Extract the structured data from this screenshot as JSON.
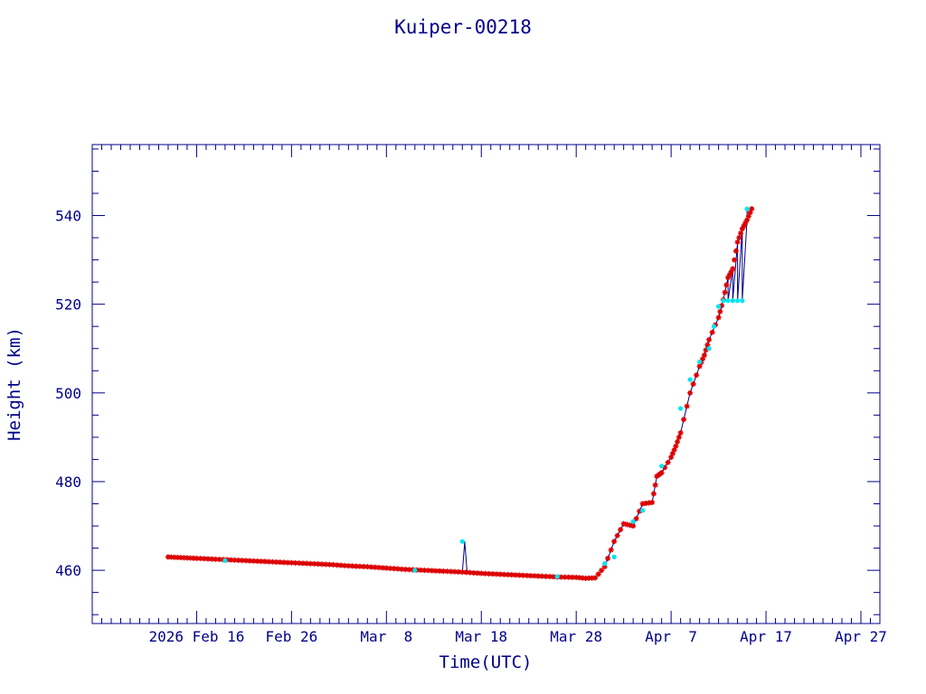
{
  "chart_data": {
    "type": "scatter",
    "title": "Kuiper-00218",
    "xlabel": "Time(UTC)",
    "ylabel": "Height (km)",
    "xlim": [
      "2026-02-05",
      "2026-04-29"
    ],
    "ylim": [
      448,
      556
    ],
    "x_ticks": [
      {
        "label": "2026 Feb 16",
        "date": "2026-02-16"
      },
      {
        "label": "Feb 26",
        "date": "2026-02-26"
      },
      {
        "label": "Mar  8",
        "date": "2026-03-08"
      },
      {
        "label": "Mar 18",
        "date": "2026-03-18"
      },
      {
        "label": "Mar 28",
        "date": "2026-03-28"
      },
      {
        "label": "Apr  7",
        "date": "2026-04-07"
      },
      {
        "label": "Apr 17",
        "date": "2026-04-17"
      },
      {
        "label": "Apr 27",
        "date": "2026-04-27"
      }
    ],
    "y_ticks": [
      460,
      480,
      500,
      520,
      540
    ],
    "colors": {
      "axis": "#00008b",
      "line": "#00008b",
      "primary": "#dd0000",
      "secondary": "#00e5ee"
    },
    "series": [
      {
        "marker": "star",
        "color": "#dd0000",
        "points": [
          [
            "2026-02-13",
            463.0
          ],
          [
            "2026-02-14",
            462.9
          ],
          [
            "2026-02-15",
            462.8
          ],
          [
            "2026-02-16",
            462.7
          ],
          [
            "2026-02-18",
            462.5
          ],
          [
            "2026-02-20",
            462.3
          ],
          [
            "2026-02-22",
            462.1
          ],
          [
            "2026-02-24",
            461.9
          ],
          [
            "2026-02-26",
            461.7
          ],
          [
            "2026-02-28",
            461.5
          ],
          [
            "2026-03-02",
            461.3
          ],
          [
            "2026-03-04",
            461.0
          ],
          [
            "2026-03-06",
            460.8
          ],
          [
            "2026-03-08",
            460.5
          ],
          [
            "2026-03-10",
            460.2
          ],
          [
            "2026-03-12",
            460.0
          ],
          [
            "2026-03-14",
            459.8
          ],
          [
            "2026-03-16",
            459.6
          ],
          [
            "2026-03-18",
            459.3
          ],
          [
            "2026-03-20",
            459.1
          ],
          [
            "2026-03-22",
            458.9
          ],
          [
            "2026-03-24",
            458.7
          ],
          [
            "2026-03-26",
            458.5
          ],
          [
            "2026-03-28",
            458.4
          ],
          [
            "2026-03-29",
            458.2
          ],
          [
            "2026-03-30",
            458.3
          ],
          [
            "2026-03-31",
            460.8
          ],
          [
            "2026-04-01",
            466.5
          ],
          [
            "2026-04-02",
            470.5
          ],
          [
            "2026-04-03",
            470.0
          ],
          [
            "2026-04-04",
            475.0
          ],
          [
            "2026-04-05",
            475.3
          ],
          [
            "2026-04-05T12:00",
            481.2
          ],
          [
            "2026-04-06",
            482.0
          ],
          [
            "2026-04-07",
            485.5
          ],
          [
            "2026-04-07T12:00",
            488.0
          ],
          [
            "2026-04-08",
            491.0
          ],
          [
            "2026-04-09",
            500.0
          ],
          [
            "2026-04-10",
            506.0
          ],
          [
            "2026-04-10T12:00",
            508.5
          ],
          [
            "2026-04-11",
            512.0
          ],
          [
            "2026-04-12",
            517.0
          ],
          [
            "2026-04-12T12:00",
            521.0
          ],
          [
            "2026-04-13",
            526.0
          ],
          [
            "2026-04-13T12:00",
            528.0
          ],
          [
            "2026-04-14",
            534.0
          ],
          [
            "2026-04-14T12:00",
            537.0
          ],
          [
            "2026-04-15",
            539.0
          ],
          [
            "2026-04-15T12:00",
            541.5
          ]
        ]
      },
      {
        "marker": "dot",
        "color": "#00e5ee",
        "points": [
          [
            "2026-02-19",
            462.2
          ],
          [
            "2026-03-11",
            460.0
          ],
          [
            "2026-03-16",
            466.5
          ],
          [
            "2026-03-26",
            458.6
          ],
          [
            "2026-03-31",
            461.5
          ],
          [
            "2026-04-01",
            463.0
          ],
          [
            "2026-04-03",
            471.0
          ],
          [
            "2026-04-04",
            473.5
          ],
          [
            "2026-04-06",
            483.5
          ],
          [
            "2026-04-08",
            496.5
          ],
          [
            "2026-04-09",
            503.0
          ],
          [
            "2026-04-10",
            507.0
          ],
          [
            "2026-04-11",
            510.0
          ],
          [
            "2026-04-11T12:00",
            515.0
          ],
          [
            "2026-04-12",
            519.5
          ],
          [
            "2026-04-12T12:00",
            520.8
          ],
          [
            "2026-04-13",
            520.8
          ],
          [
            "2026-04-13T12:00",
            520.8
          ],
          [
            "2026-04-14",
            520.8
          ],
          [
            "2026-04-14T12:00",
            520.8
          ],
          [
            "2026-04-15",
            541.5
          ]
        ]
      }
    ],
    "line": [
      [
        "2026-02-13",
        463.0
      ],
      [
        "2026-03-16",
        459.6
      ],
      [
        "2026-03-16T06:00",
        466.5
      ],
      [
        "2026-03-16T12:00",
        459.6
      ],
      [
        "2026-03-29",
        458.2
      ],
      [
        "2026-03-30",
        458.3
      ],
      [
        "2026-03-31",
        460.8
      ],
      [
        "2026-04-01",
        466.5
      ],
      [
        "2026-04-02",
        470.5
      ],
      [
        "2026-04-03",
        470.0
      ],
      [
        "2026-04-04",
        475.0
      ],
      [
        "2026-04-05",
        475.3
      ],
      [
        "2026-04-05T12:00",
        481.2
      ],
      [
        "2026-04-06",
        482.0
      ],
      [
        "2026-04-07",
        485.5
      ],
      [
        "2026-04-08",
        491.0
      ],
      [
        "2026-04-09",
        500.0
      ],
      [
        "2026-04-10",
        506.0
      ],
      [
        "2026-04-10T12:00",
        508.5
      ],
      [
        "2026-04-11",
        512.0
      ],
      [
        "2026-04-12",
        517.0
      ],
      [
        "2026-04-12T12:00",
        521.0
      ],
      [
        "2026-04-13",
        526.0
      ],
      [
        "2026-04-13",
        520.8
      ],
      [
        "2026-04-13T12:00",
        528.0
      ],
      [
        "2026-04-13T12:00",
        520.8
      ],
      [
        "2026-04-14",
        534.0
      ],
      [
        "2026-04-14",
        520.8
      ],
      [
        "2026-04-14T12:00",
        537.0
      ],
      [
        "2026-04-14T12:00",
        520.8
      ],
      [
        "2026-04-15",
        539.0
      ],
      [
        "2026-04-15",
        541.5
      ],
      [
        "2026-04-15T12:00",
        541.5
      ]
    ]
  }
}
